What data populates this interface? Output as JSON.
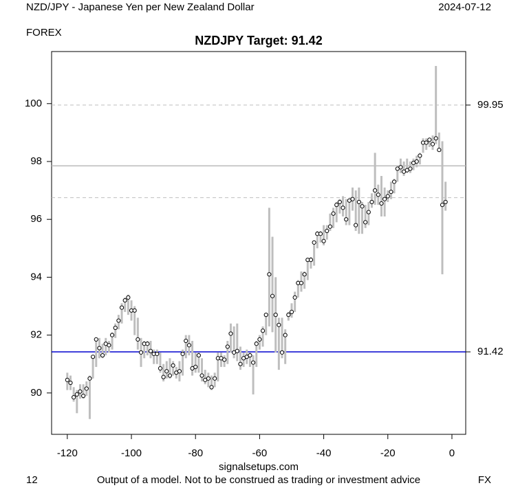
{
  "chart_data": {
    "type": "rangebar",
    "header_left": "NZD/JPY - Japanese Yen per New Zealand Dollar",
    "header_right": "2024-07-12",
    "market": "FOREX",
    "title": "NZDJPY Target: 91.42",
    "xlabel": "signalsetups.com",
    "footer_left": "12",
    "footer_center": "Output of a model. Not to be construed as trading or investment advice",
    "footer_right": "FX",
    "xlim": [
      -124.9,
      4.3
    ],
    "ylim": [
      88.57,
      101.8
    ],
    "xticks": [
      -120,
      -100,
      -80,
      -60,
      -40,
      -20,
      0
    ],
    "yticks": [
      90,
      92,
      94,
      96,
      98,
      100
    ],
    "bar_color": "#bebebe",
    "point_color": "#000000",
    "hlines": [
      {
        "value": 99.95,
        "color": "#bebebe",
        "dash": true,
        "label": true
      },
      {
        "value": 97.85,
        "color": "#bebebe",
        "dash": false,
        "label": false
      },
      {
        "value": 96.75,
        "color": "#bebebe",
        "dash": true,
        "label": false
      },
      {
        "value": 91.42,
        "color": "#0000cd",
        "dash": false,
        "label": true
      }
    ],
    "x": [
      -120,
      -119,
      -118,
      -117,
      -116,
      -115,
      -114,
      -113,
      -112,
      -111,
      -110,
      -109,
      -108,
      -107,
      -106,
      -105,
      -104,
      -103,
      -102,
      -101,
      -100,
      -99,
      -98,
      -97,
      -96,
      -95,
      -94,
      -93,
      -92,
      -91,
      -90,
      -89,
      -88,
      -87,
      -86,
      -85,
      -84,
      -83,
      -82,
      -81,
      -80,
      -79,
      -78,
      -77,
      -76,
      -75,
      -74,
      -73,
      -72,
      -71,
      -70,
      -69,
      -68,
      -67,
      -66,
      -65,
      -64,
      -63,
      -62,
      -61,
      -60,
      -59,
      -58,
      -57,
      -56,
      -55,
      -54,
      -53,
      -52,
      -51,
      -50,
      -49,
      -48,
      -47,
      -46,
      -45,
      -44,
      -43,
      -42,
      -41,
      -40,
      -39,
      -38,
      -37,
      -36,
      -35,
      -34,
      -33,
      -32,
      -31,
      -30,
      -29,
      -28,
      -27,
      -26,
      -25,
      -24,
      -23,
      -22,
      -21,
      -20,
      -19,
      -18,
      -17,
      -16,
      -15,
      -14,
      -13,
      -12,
      -11,
      -10,
      -9,
      -8,
      -7,
      -6,
      -5,
      -4,
      -3,
      -2
    ],
    "values": [
      90.45,
      90.35,
      89.85,
      89.95,
      90.05,
      89.9,
      90.15,
      90.5,
      91.25,
      91.85,
      91.55,
      91.3,
      91.7,
      91.65,
      92.0,
      92.25,
      92.5,
      92.95,
      93.2,
      93.3,
      92.85,
      92.85,
      91.85,
      91.4,
      91.7,
      91.7,
      91.45,
      91.35,
      91.35,
      90.85,
      90.55,
      90.75,
      90.6,
      90.95,
      90.7,
      90.75,
      91.35,
      91.8,
      91.65,
      90.85,
      90.9,
      91.3,
      90.6,
      90.45,
      90.5,
      90.2,
      90.5,
      91.2,
      91.2,
      91.15,
      91.6,
      92.05,
      91.4,
      91.45,
      91.0,
      91.2,
      91.25,
      91.3,
      91.05,
      91.7,
      91.85,
      92.15,
      92.7,
      94.1,
      93.35,
      92.7,
      92.35,
      91.4,
      92.0,
      92.7,
      92.8,
      93.3,
      93.8,
      93.8,
      94.1,
      94.6,
      94.6,
      95.2,
      95.5,
      95.5,
      95.25,
      95.6,
      95.75,
      96.2,
      96.5,
      96.6,
      96.4,
      96.0,
      96.65,
      96.7,
      95.8,
      96.6,
      96.45,
      95.9,
      96.25,
      96.6,
      97.0,
      96.85,
      96.55,
      96.7,
      96.8,
      96.95,
      97.3,
      97.75,
      97.8,
      97.65,
      97.7,
      97.75,
      97.95,
      98.0,
      98.2,
      98.65,
      98.65,
      98.75,
      98.6,
      98.8,
      98.4,
      96.5,
      96.6
    ],
    "low": [
      90.1,
      90.1,
      89.7,
      89.3,
      89.8,
      89.8,
      89.9,
      89.1,
      90.5,
      90.9,
      91.2,
      91.2,
      91.3,
      91.4,
      91.5,
      91.9,
      92.2,
      92.4,
      92.8,
      92.7,
      92.5,
      92.0,
      91.5,
      90.9,
      91.2,
      91.3,
      91.2,
      91.0,
      91.0,
      90.7,
      90.4,
      90.5,
      90.5,
      90.6,
      90.5,
      90.4,
      90.6,
      91.2,
      91.3,
      90.6,
      90.7,
      90.7,
      90.4,
      90.3,
      90.2,
      90.1,
      90.2,
      90.4,
      90.9,
      90.9,
      91.0,
      91.4,
      91.2,
      91.1,
      90.8,
      90.9,
      91.0,
      90.9,
      89.95,
      90.9,
      91.5,
      91.6,
      92.0,
      92.3,
      92.1,
      91.4,
      90.8,
      91.2,
      91.0,
      92.5,
      92.6,
      92.8,
      93.3,
      93.5,
      93.6,
      93.9,
      94.3,
      94.4,
      95.0,
      95.2,
      95.1,
      95.3,
      95.6,
      95.7,
      95.9,
      96.2,
      96.1,
      95.8,
      95.8,
      96.3,
      95.6,
      95.5,
      95.5,
      95.7,
      95.8,
      96.4,
      96.5,
      96.5,
      96.1,
      96.1,
      96.6,
      96.7,
      96.9,
      97.3,
      97.6,
      97.5,
      97.6,
      97.6,
      97.7,
      97.8,
      97.9,
      98.3,
      98.4,
      98.5,
      98.4,
      98.6,
      98.4,
      94.1,
      96.3
    ],
    "high": [
      90.7,
      90.6,
      90.2,
      90.1,
      90.3,
      90.3,
      90.4,
      90.6,
      91.3,
      91.9,
      91.9,
      91.7,
      91.9,
      91.8,
      92.1,
      92.4,
      92.7,
      93.1,
      93.3,
      93.4,
      93.2,
      93.0,
      92.6,
      91.9,
      91.8,
      91.8,
      91.8,
      91.5,
      91.5,
      91.4,
      91.0,
      91.1,
      91.2,
      91.1,
      90.9,
      91.1,
      91.5,
      92.0,
      92.0,
      91.8,
      91.4,
      91.4,
      91.2,
      90.8,
      90.7,
      90.6,
      90.7,
      91.4,
      91.4,
      91.3,
      91.8,
      92.4,
      92.3,
      92.4,
      91.6,
      91.4,
      91.5,
      91.4,
      91.3,
      91.8,
      92.0,
      92.3,
      92.7,
      96.4,
      95.4,
      94.0,
      92.6,
      92.6,
      92.2,
      92.8,
      93.1,
      93.5,
      93.9,
      94.2,
      94.2,
      94.6,
      94.7,
      95.2,
      95.6,
      95.6,
      95.8,
      95.8,
      96.2,
      96.4,
      96.6,
      96.7,
      96.8,
      96.7,
      96.7,
      97.1,
      97.0,
      97.1,
      96.6,
      96.5,
      96.6,
      96.9,
      98.3,
      97.2,
      97.5,
      97.1,
      97.0,
      97.3,
      97.4,
      97.8,
      98.1,
      98.0,
      98.1,
      98.0,
      98.1,
      98.2,
      98.3,
      98.8,
      98.8,
      98.8,
      98.9,
      101.3,
      99.0,
      98.7,
      97.3
    ]
  }
}
